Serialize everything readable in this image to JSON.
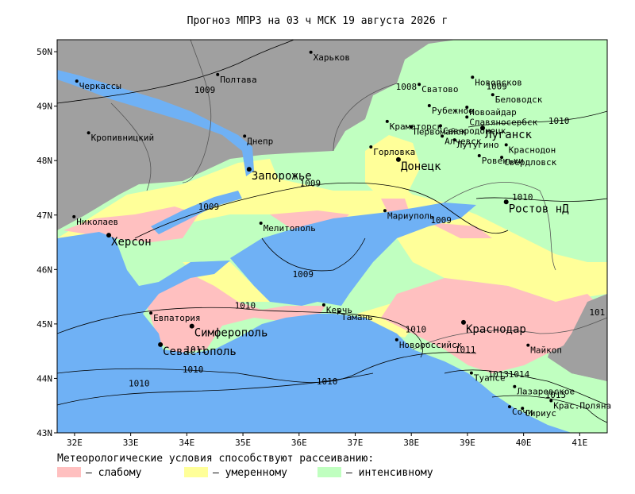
{
  "title": "Прогноз МПРЗ на 03 ч МСК 19 августа 2026 г",
  "map": {
    "lonlim": [
      31.69,
      41.49
    ],
    "latlim": [
      43,
      50.22
    ],
    "lon_ticks": [
      {
        "value": 32,
        "label": "32E"
      },
      {
        "value": 33,
        "label": "33E"
      },
      {
        "value": 34,
        "label": "34E"
      },
      {
        "value": 35,
        "label": "35E"
      },
      {
        "value": 36,
        "label": "36E"
      },
      {
        "value": 37,
        "label": "37E"
      },
      {
        "value": 38,
        "label": "38E"
      },
      {
        "value": 39,
        "label": "39E"
      },
      {
        "value": 40,
        "label": "40E"
      },
      {
        "value": 41,
        "label": "41E"
      }
    ],
    "lat_ticks": [
      {
        "value": 50,
        "label": "50N"
      },
      {
        "value": 49,
        "label": "49N"
      },
      {
        "value": 48,
        "label": "48N"
      },
      {
        "value": 47,
        "label": "47N"
      },
      {
        "value": 46,
        "label": "46N"
      },
      {
        "value": 45,
        "label": "45N"
      },
      {
        "value": 44,
        "label": "44N"
      },
      {
        "value": 43,
        "label": "43N"
      }
    ],
    "cities": [
      {
        "name": "Харьков",
        "lon": 36.21,
        "lat": 49.99,
        "large": false
      },
      {
        "name": "Полтава",
        "lon": 34.55,
        "lat": 49.58,
        "large": false
      },
      {
        "name": "Черкассы",
        "lon": 32.04,
        "lat": 49.46,
        "large": false
      },
      {
        "name": "Кропивницкий",
        "lon": 32.25,
        "lat": 48.51,
        "large": false
      },
      {
        "name": "Днепр",
        "lon": 35.03,
        "lat": 48.45,
        "large": false
      },
      {
        "name": "Запорожье",
        "lon": 35.11,
        "lat": 47.84,
        "large": true
      },
      {
        "name": "Николаев",
        "lon": 31.99,
        "lat": 46.97,
        "large": false
      },
      {
        "name": "Херсон",
        "lon": 32.61,
        "lat": 46.63,
        "large": true
      },
      {
        "name": "Мелитополь",
        "lon": 35.32,
        "lat": 46.85,
        "large": false
      },
      {
        "name": "Мариуполь",
        "lon": 37.53,
        "lat": 47.08,
        "large": false
      },
      {
        "name": "Донецк",
        "lon": 37.77,
        "lat": 48.02,
        "large": true
      },
      {
        "name": "Горловка",
        "lon": 37.28,
        "lat": 48.25,
        "large": false
      },
      {
        "name": "Краматорск",
        "lon": 37.57,
        "lat": 48.72,
        "large": false
      },
      {
        "name": "Сватово",
        "lon": 38.14,
        "lat": 49.4,
        "large": false
      },
      {
        "name": "Новопсков",
        "lon": 39.09,
        "lat": 49.53,
        "large": false
      },
      {
        "name": "Беловодск",
        "lon": 39.45,
        "lat": 49.21,
        "large": false
      },
      {
        "name": "Новоайдар",
        "lon": 38.99,
        "lat": 48.98,
        "large": false
      },
      {
        "name": "Славяносербск",
        "lon": 38.99,
        "lat": 48.8,
        "large": false
      },
      {
        "name": "Рубежное",
        "lon": 38.32,
        "lat": 49.01,
        "large": false
      },
      {
        "name": "Северодонецк",
        "lon": 38.52,
        "lat": 48.64,
        "large": false
      },
      {
        "name": "Первомайск",
        "lon": 38.0,
        "lat": 48.62,
        "large": false
      },
      {
        "name": "Алчевск",
        "lon": 38.55,
        "lat": 48.45,
        "large": false
      },
      {
        "name": "Луганск",
        "lon": 39.27,
        "lat": 48.6,
        "large": true
      },
      {
        "name": "Лутугино",
        "lon": 38.77,
        "lat": 48.38,
        "large": false
      },
      {
        "name": "Краснодон",
        "lon": 39.69,
        "lat": 48.29,
        "large": false
      },
      {
        "name": "Свердловск",
        "lon": 39.61,
        "lat": 48.06,
        "large": false
      },
      {
        "name": "Ровеньки",
        "lon": 39.21,
        "lat": 48.09,
        "large": false
      },
      {
        "name": "Ростов нД",
        "lon": 39.69,
        "lat": 47.24,
        "large": true
      },
      {
        "name": "Краснодар",
        "lon": 38.93,
        "lat": 45.03,
        "large": true
      },
      {
        "name": "Майкоп",
        "lon": 40.08,
        "lat": 44.61,
        "large": false
      },
      {
        "name": "Туапсе",
        "lon": 39.07,
        "lat": 44.1,
        "large": false
      },
      {
        "name": "Лазаревское",
        "lon": 39.84,
        "lat": 43.85,
        "large": false
      },
      {
        "name": "Крас.Поляна",
        "lon": 40.49,
        "lat": 43.59,
        "large": false
      },
      {
        "name": "Сочи",
        "lon": 39.75,
        "lat": 43.48,
        "large": false
      },
      {
        "name": "Сириус",
        "lon": 39.98,
        "lat": 43.45,
        "large": false
      },
      {
        "name": "Новороссийск",
        "lon": 37.74,
        "lat": 44.71,
        "large": false
      },
      {
        "name": "Тамань",
        "lon": 36.71,
        "lat": 45.22,
        "large": false
      },
      {
        "name": "Керчь",
        "lon": 36.44,
        "lat": 45.35,
        "large": false
      },
      {
        "name": "Евпатория",
        "lon": 33.36,
        "lat": 45.2,
        "large": false
      },
      {
        "name": "Симферополь",
        "lon": 34.09,
        "lat": 44.96,
        "large": true
      },
      {
        "name": "Севастополь",
        "lon": 33.53,
        "lat": 44.62,
        "large": true
      }
    ],
    "isobar_labels": [
      {
        "label": "1009",
        "lon": 34.32,
        "lat": 49.3
      },
      {
        "label": "1009",
        "lon": 36.2,
        "lat": 47.59
      },
      {
        "label": "1009",
        "lon": 34.39,
        "lat": 47.16
      },
      {
        "label": "1009",
        "lon": 38.53,
        "lat": 46.91
      },
      {
        "label": "1009",
        "lon": 36.07,
        "lat": 45.92
      },
      {
        "label": "1010",
        "lon": 35.04,
        "lat": 45.34
      },
      {
        "label": "1010",
        "lon": 38.08,
        "lat": 44.9
      },
      {
        "label": "1011",
        "lon": 34.16,
        "lat": 44.53
      },
      {
        "label": "1010",
        "lon": 34.11,
        "lat": 44.17
      },
      {
        "label": "1010",
        "lon": 33.15,
        "lat": 43.91
      },
      {
        "label": "1010",
        "lon": 36.5,
        "lat": 43.95
      },
      {
        "label": "1011",
        "lon": 38.96,
        "lat": 44.53
      },
      {
        "label": "1010",
        "lon": 40.63,
        "lat": 48.73
      },
      {
        "label": "1010",
        "lon": 39.98,
        "lat": 47.33
      },
      {
        "label": "1009",
        "lon": 39.52,
        "lat": 49.37
      },
      {
        "label": "1008",
        "lon": 37.91,
        "lat": 49.36
      },
      {
        "label": "1013",
        "lon": 39.55,
        "lat": 44.08
      },
      {
        "label": "1014",
        "lon": 39.92,
        "lat": 44.08
      },
      {
        "label": "1015",
        "lon": 40.57,
        "lat": 43.7
      },
      {
        "label": "101",
        "lon": 41.31,
        "lat": 45.22
      }
    ]
  },
  "legend": {
    "title": "Метеорологические условия способствуют рассеиванию:",
    "items": [
      {
        "label": "— слабому",
        "color": "#ffc0c0"
      },
      {
        "label": "— умеренному",
        "color": "#ffff99"
      },
      {
        "label": "— интенсивному",
        "color": "#c0ffc0"
      }
    ]
  }
}
